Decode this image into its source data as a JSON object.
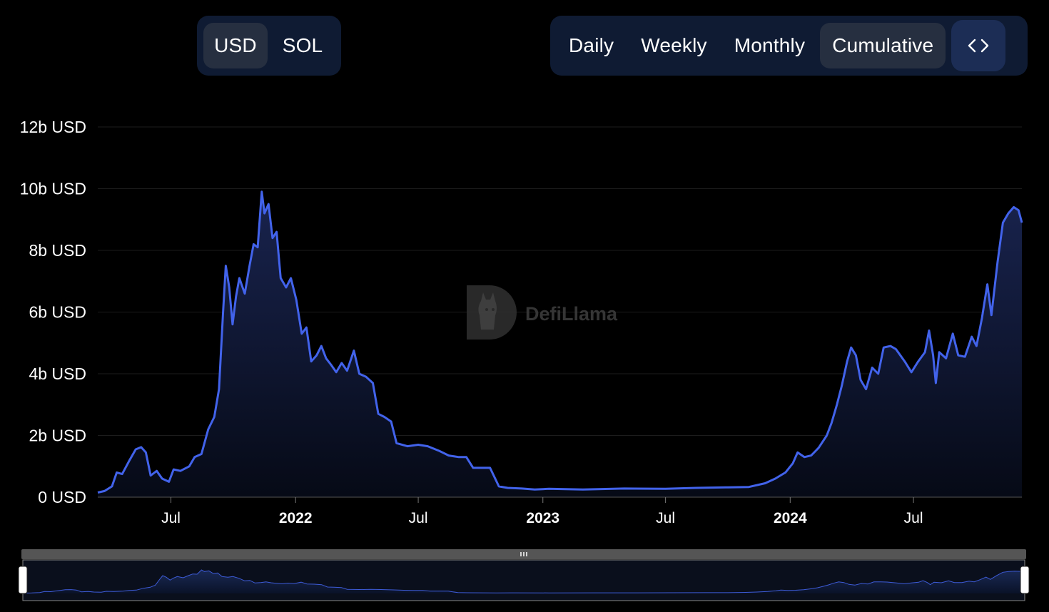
{
  "currency_toggle": {
    "options": [
      "USD",
      "SOL"
    ],
    "selected": "USD"
  },
  "range_toggle": {
    "options": [
      "Daily",
      "Weekly",
      "Monthly",
      "Cumulative"
    ],
    "selected": "Cumulative",
    "embed_icon": "code-brackets-icon"
  },
  "watermark": {
    "text": "DefiLlama",
    "icon": "llama-logo-icon"
  },
  "colors": {
    "line": "#4263eb",
    "area_top": "#1a2552",
    "grid": "#1c1c1c",
    "active_button": "#262f40",
    "group_bg": "#0f1b33"
  },
  "chart_data": {
    "type": "area",
    "title": "",
    "xlabel": "",
    "ylabel": "",
    "x_range": [
      "2021-03-15",
      "2024-12-08"
    ],
    "ylim": [
      0,
      12
    ],
    "y_unit": "b USD",
    "y_ticks": [
      {
        "value": 0,
        "label": "0 USD"
      },
      {
        "value": 2,
        "label": "2b USD"
      },
      {
        "value": 4,
        "label": "4b USD"
      },
      {
        "value": 6,
        "label": "6b USD"
      },
      {
        "value": 8,
        "label": "8b USD"
      },
      {
        "value": 10,
        "label": "10b USD"
      },
      {
        "value": 12,
        "label": "12b USD"
      }
    ],
    "x_ticks": [
      {
        "date": "2021-07-01",
        "label": "Jul",
        "bold": false
      },
      {
        "date": "2022-01-01",
        "label": "2022",
        "bold": true
      },
      {
        "date": "2022-07-01",
        "label": "Jul",
        "bold": false
      },
      {
        "date": "2023-01-01",
        "label": "2023",
        "bold": true
      },
      {
        "date": "2023-07-01",
        "label": "Jul",
        "bold": false
      },
      {
        "date": "2024-01-01",
        "label": "2024",
        "bold": true
      },
      {
        "date": "2024-07-01",
        "label": "Jul",
        "bold": false
      }
    ],
    "grid": true,
    "legend": "none",
    "series": [
      {
        "points": [
          [
            "2021-03-15",
            0.15
          ],
          [
            "2021-03-25",
            0.2
          ],
          [
            "2021-04-05",
            0.35
          ],
          [
            "2021-04-12",
            0.8
          ],
          [
            "2021-04-20",
            0.75
          ],
          [
            "2021-05-01",
            1.2
          ],
          [
            "2021-05-10",
            1.55
          ],
          [
            "2021-05-18",
            1.62
          ],
          [
            "2021-05-25",
            1.45
          ],
          [
            "2021-06-01",
            0.7
          ],
          [
            "2021-06-10",
            0.85
          ],
          [
            "2021-06-18",
            0.6
          ],
          [
            "2021-06-28",
            0.5
          ],
          [
            "2021-07-05",
            0.9
          ],
          [
            "2021-07-15",
            0.85
          ],
          [
            "2021-07-28",
            1.0
          ],
          [
            "2021-08-05",
            1.3
          ],
          [
            "2021-08-15",
            1.4
          ],
          [
            "2021-08-25",
            2.2
          ],
          [
            "2021-09-03",
            2.6
          ],
          [
            "2021-09-10",
            3.5
          ],
          [
            "2021-09-16",
            6.0
          ],
          [
            "2021-09-20",
            7.5
          ],
          [
            "2021-09-25",
            6.8
          ],
          [
            "2021-09-30",
            5.6
          ],
          [
            "2021-10-05",
            6.5
          ],
          [
            "2021-10-10",
            7.1
          ],
          [
            "2021-10-18",
            6.6
          ],
          [
            "2021-10-25",
            7.5
          ],
          [
            "2021-10-31",
            8.2
          ],
          [
            "2021-11-06",
            8.1
          ],
          [
            "2021-11-12",
            9.9
          ],
          [
            "2021-11-16",
            9.2
          ],
          [
            "2021-11-22",
            9.5
          ],
          [
            "2021-11-28",
            8.4
          ],
          [
            "2021-12-04",
            8.6
          ],
          [
            "2021-12-10",
            7.1
          ],
          [
            "2021-12-18",
            6.8
          ],
          [
            "2021-12-25",
            7.1
          ],
          [
            "2022-01-02",
            6.4
          ],
          [
            "2022-01-10",
            5.3
          ],
          [
            "2022-01-17",
            5.5
          ],
          [
            "2022-01-24",
            4.4
          ],
          [
            "2022-02-01",
            4.6
          ],
          [
            "2022-02-08",
            4.9
          ],
          [
            "2022-02-15",
            4.5
          ],
          [
            "2022-02-22",
            4.3
          ],
          [
            "2022-03-02",
            4.05
          ],
          [
            "2022-03-10",
            4.35
          ],
          [
            "2022-03-18",
            4.1
          ],
          [
            "2022-03-28",
            4.75
          ],
          [
            "2022-04-05",
            4.0
          ],
          [
            "2022-04-15",
            3.9
          ],
          [
            "2022-04-25",
            3.7
          ],
          [
            "2022-05-03",
            2.7
          ],
          [
            "2022-05-12",
            2.6
          ],
          [
            "2022-05-22",
            2.45
          ],
          [
            "2022-05-30",
            1.75
          ],
          [
            "2022-06-15",
            1.65
          ],
          [
            "2022-07-01",
            1.7
          ],
          [
            "2022-07-15",
            1.65
          ],
          [
            "2022-08-01",
            1.5
          ],
          [
            "2022-08-15",
            1.35
          ],
          [
            "2022-08-30",
            1.3
          ],
          [
            "2022-09-10",
            1.3
          ],
          [
            "2022-09-20",
            0.95
          ],
          [
            "2022-10-05",
            0.95
          ],
          [
            "2022-10-15",
            0.95
          ],
          [
            "2022-10-28",
            0.35
          ],
          [
            "2022-11-10",
            0.3
          ],
          [
            "2022-12-01",
            0.28
          ],
          [
            "2022-12-20",
            0.25
          ],
          [
            "2023-01-10",
            0.27
          ],
          [
            "2023-03-01",
            0.25
          ],
          [
            "2023-05-01",
            0.28
          ],
          [
            "2023-07-01",
            0.27
          ],
          [
            "2023-08-15",
            0.3
          ],
          [
            "2023-10-01",
            0.32
          ],
          [
            "2023-11-01",
            0.33
          ],
          [
            "2023-11-25",
            0.45
          ],
          [
            "2023-12-10",
            0.6
          ],
          [
            "2023-12-25",
            0.8
          ],
          [
            "2024-01-05",
            1.1
          ],
          [
            "2024-01-12",
            1.45
          ],
          [
            "2024-01-22",
            1.3
          ],
          [
            "2024-02-01",
            1.35
          ],
          [
            "2024-02-12",
            1.6
          ],
          [
            "2024-02-24",
            2.0
          ],
          [
            "2024-03-02",
            2.4
          ],
          [
            "2024-03-10",
            3.0
          ],
          [
            "2024-03-17",
            3.6
          ],
          [
            "2024-03-25",
            4.4
          ],
          [
            "2024-03-31",
            4.85
          ],
          [
            "2024-04-07",
            4.6
          ],
          [
            "2024-04-14",
            3.8
          ],
          [
            "2024-04-22",
            3.5
          ],
          [
            "2024-05-01",
            4.2
          ],
          [
            "2024-05-10",
            4.0
          ],
          [
            "2024-05-18",
            4.85
          ],
          [
            "2024-05-28",
            4.9
          ],
          [
            "2024-06-05",
            4.8
          ],
          [
            "2024-06-18",
            4.4
          ],
          [
            "2024-06-28",
            4.05
          ],
          [
            "2024-07-08",
            4.4
          ],
          [
            "2024-07-18",
            4.7
          ],
          [
            "2024-07-24",
            5.4
          ],
          [
            "2024-07-30",
            4.6
          ],
          [
            "2024-08-03",
            3.7
          ],
          [
            "2024-08-08",
            4.7
          ],
          [
            "2024-08-18",
            4.5
          ],
          [
            "2024-08-28",
            5.3
          ],
          [
            "2024-09-05",
            4.6
          ],
          [
            "2024-09-15",
            4.55
          ],
          [
            "2024-09-25",
            5.2
          ],
          [
            "2024-10-02",
            4.9
          ],
          [
            "2024-10-10",
            5.8
          ],
          [
            "2024-10-18",
            6.9
          ],
          [
            "2024-10-24",
            5.9
          ],
          [
            "2024-11-02",
            7.6
          ],
          [
            "2024-11-10",
            8.9
          ],
          [
            "2024-11-18",
            9.2
          ],
          [
            "2024-11-26",
            9.4
          ],
          [
            "2024-12-03",
            9.3
          ],
          [
            "2024-12-08",
            8.9
          ]
        ]
      }
    ]
  },
  "navigator": {
    "handle_grip": "grip-lines-icon"
  }
}
